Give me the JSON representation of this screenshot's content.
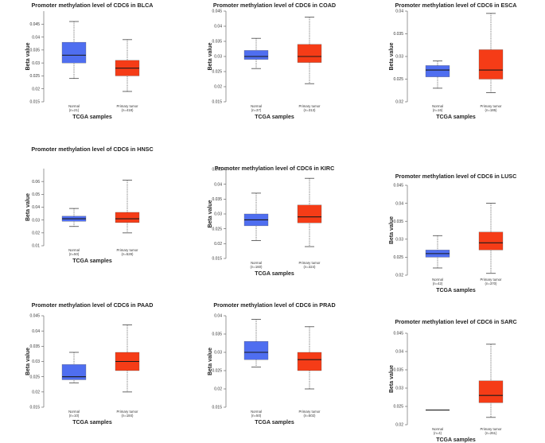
{
  "figure": {
    "xlabel": "TCGA samples",
    "ylabel": "Beta value",
    "colors": {
      "normal": "#4f6ef0",
      "tumor": "#f53c17",
      "median": "#1a1a1a",
      "whisker": "#444444"
    }
  },
  "chart_data": [
    {
      "type": "box",
      "title": "Promoter methylation level of CDC6 in BLCA",
      "ylim": [
        0.015,
        0.05
      ],
      "yticks": [
        "0.015",
        "0.02",
        "0.025",
        "0.03",
        "0.035",
        "0.04",
        "0.045"
      ],
      "tick_values": [
        0.015,
        0.02,
        0.025,
        0.03,
        0.035,
        0.04,
        0.045
      ],
      "xlabel": "TCGA samples",
      "ylabel": "Beta value",
      "groups": [
        {
          "name": "Normal",
          "n": "(n=21)",
          "color": "normal",
          "min": 0.024,
          "q1": 0.03,
          "median": 0.033,
          "q3": 0.038,
          "max": 0.046
        },
        {
          "name": "Primary tumor",
          "n": "(n=418)",
          "color": "tumor",
          "min": 0.019,
          "q1": 0.025,
          "median": 0.028,
          "q3": 0.031,
          "max": 0.039
        }
      ]
    },
    {
      "type": "box",
      "title": "Promoter methylation level of CDC6 in COAD",
      "ylim": [
        0.015,
        0.045
      ],
      "yticks": [
        "0.015",
        "0.02",
        "0.025",
        "0.03",
        "0.035",
        "0.04",
        "0.045"
      ],
      "tick_values": [
        0.015,
        0.02,
        0.025,
        0.03,
        0.035,
        0.04,
        0.045
      ],
      "xlabel": "TCGA samples",
      "ylabel": "Beta value",
      "groups": [
        {
          "name": "Normal",
          "n": "(n=37)",
          "color": "normal",
          "min": 0.026,
          "q1": 0.029,
          "median": 0.03,
          "q3": 0.032,
          "max": 0.036
        },
        {
          "name": "Primary tumor",
          "n": "(n=313)",
          "color": "tumor",
          "min": 0.021,
          "q1": 0.028,
          "median": 0.03,
          "q3": 0.034,
          "max": 0.043
        }
      ]
    },
    {
      "type": "box",
      "title": "Promoter methylation level of CDC6 in ESCA",
      "ylim": [
        0.02,
        0.04
      ],
      "yticks": [
        "0.02",
        "0.025",
        "0.03",
        "0.035",
        "0.04"
      ],
      "tick_values": [
        0.02,
        0.025,
        0.03,
        0.035,
        0.04
      ],
      "xlabel": "TCGA samples",
      "ylabel": "Beta value",
      "groups": [
        {
          "name": "Normal",
          "n": "(n=16)",
          "color": "normal",
          "min": 0.023,
          "q1": 0.0255,
          "median": 0.027,
          "q3": 0.028,
          "max": 0.029
        },
        {
          "name": "Primary tumor",
          "n": "(n=185)",
          "color": "tumor",
          "min": 0.022,
          "q1": 0.025,
          "median": 0.027,
          "q3": 0.0315,
          "max": 0.0395
        }
      ]
    },
    {
      "type": "box",
      "title": "Promoter methylation level of CDC6 in HNSC",
      "ylim": [
        0.01,
        0.07
      ],
      "yticks": [
        "0.01",
        "0.02",
        "0.03",
        "0.04",
        "0.05",
        "0.06"
      ],
      "tick_values": [
        0.01,
        0.02,
        0.03,
        0.04,
        0.05,
        0.06
      ],
      "xlabel": "TCGA samples",
      "ylabel": "Beta value",
      "groups": [
        {
          "name": "Normal",
          "n": "(n=50)",
          "color": "normal",
          "min": 0.025,
          "q1": 0.029,
          "median": 0.031,
          "q3": 0.033,
          "max": 0.039
        },
        {
          "name": "Primary tumor",
          "n": "(n=528)",
          "color": "tumor",
          "min": 0.02,
          "q1": 0.028,
          "median": 0.031,
          "q3": 0.036,
          "max": 0.061
        }
      ]
    },
    {
      "type": "box",
      "title": "Promoter methylation level of CDC6 in KIRC",
      "ylim": [
        0.015,
        0.045
      ],
      "yticks": [
        "0.015",
        "0.02",
        "0.025",
        "0.03",
        "0.035",
        "0.04",
        "0.045"
      ],
      "tick_values": [
        0.015,
        0.02,
        0.025,
        0.03,
        0.035,
        0.04,
        0.045
      ],
      "xlabel": "TCGA samples",
      "ylabel": "Beta value",
      "groups": [
        {
          "name": "Normal",
          "n": "(n=160)",
          "color": "normal",
          "min": 0.021,
          "q1": 0.026,
          "median": 0.028,
          "q3": 0.03,
          "max": 0.037
        },
        {
          "name": "Primary tumor",
          "n": "(n=324)",
          "color": "tumor",
          "min": 0.019,
          "q1": 0.027,
          "median": 0.029,
          "q3": 0.033,
          "max": 0.042
        }
      ]
    },
    {
      "type": "box",
      "title": "Promoter methylation level of CDC6 in LUSC",
      "ylim": [
        0.02,
        0.045
      ],
      "yticks": [
        "0.02",
        "0.025",
        "0.03",
        "0.035",
        "0.04",
        "0.045"
      ],
      "tick_values": [
        0.02,
        0.025,
        0.03,
        0.035,
        0.04,
        0.045
      ],
      "xlabel": "TCGA samples",
      "ylabel": "Beta value",
      "groups": [
        {
          "name": "Normal",
          "n": "(n=42)",
          "color": "normal",
          "min": 0.022,
          "q1": 0.025,
          "median": 0.026,
          "q3": 0.027,
          "max": 0.031
        },
        {
          "name": "Primary tumor",
          "n": "(n=370)",
          "color": "tumor",
          "min": 0.0205,
          "q1": 0.027,
          "median": 0.029,
          "q3": 0.032,
          "max": 0.04
        }
      ]
    },
    {
      "type": "box",
      "title": "Promoter methylation level of CDC6 in PAAD",
      "ylim": [
        0.015,
        0.045
      ],
      "yticks": [
        "0.015",
        "0.02",
        "0.025",
        "0.03",
        "0.035",
        "0.04",
        "0.045"
      ],
      "tick_values": [
        0.015,
        0.02,
        0.025,
        0.03,
        0.035,
        0.04,
        0.045
      ],
      "xlabel": "TCGA samples",
      "ylabel": "Beta value",
      "groups": [
        {
          "name": "Normal",
          "n": "(n=10)",
          "color": "normal",
          "min": 0.023,
          "q1": 0.024,
          "median": 0.025,
          "q3": 0.029,
          "max": 0.033
        },
        {
          "name": "Primary tumor",
          "n": "(n=184)",
          "color": "tumor",
          "min": 0.02,
          "q1": 0.027,
          "median": 0.03,
          "q3": 0.033,
          "max": 0.042
        }
      ]
    },
    {
      "type": "box",
      "title": "Promoter methylation level of CDC6 in PRAD",
      "ylim": [
        0.015,
        0.04
      ],
      "yticks": [
        "0.015",
        "0.02",
        "0.025",
        "0.03",
        "0.035",
        "0.04"
      ],
      "tick_values": [
        0.015,
        0.02,
        0.025,
        0.03,
        0.035,
        0.04
      ],
      "xlabel": "TCGA samples",
      "ylabel": "Beta value",
      "groups": [
        {
          "name": "Normal",
          "n": "(n=50)",
          "color": "normal",
          "min": 0.026,
          "q1": 0.028,
          "median": 0.03,
          "q3": 0.033,
          "max": 0.039
        },
        {
          "name": "Primary tumor",
          "n": "(n=502)",
          "color": "tumor",
          "min": 0.02,
          "q1": 0.025,
          "median": 0.028,
          "q3": 0.03,
          "max": 0.037
        }
      ]
    },
    {
      "type": "box",
      "title": "Promoter methylation level of CDC6 in SARC",
      "ylim": [
        0.02,
        0.045
      ],
      "yticks": [
        "0.02",
        "0.025",
        "0.03",
        "0.035",
        "0.04",
        "0.045"
      ],
      "tick_values": [
        0.02,
        0.025,
        0.03,
        0.035,
        0.04,
        0.045
      ],
      "xlabel": "TCGA samples",
      "ylabel": "Beta value",
      "groups": [
        {
          "name": "Normal",
          "n": "(n=4)",
          "color": "normal",
          "min": 0.024,
          "q1": 0.024,
          "median": 0.024,
          "q3": 0.024,
          "max": 0.024
        },
        {
          "name": "Primary tumor",
          "n": "(n=261)",
          "color": "tumor",
          "min": 0.022,
          "q1": 0.026,
          "median": 0.028,
          "q3": 0.032,
          "max": 0.042
        }
      ]
    }
  ]
}
